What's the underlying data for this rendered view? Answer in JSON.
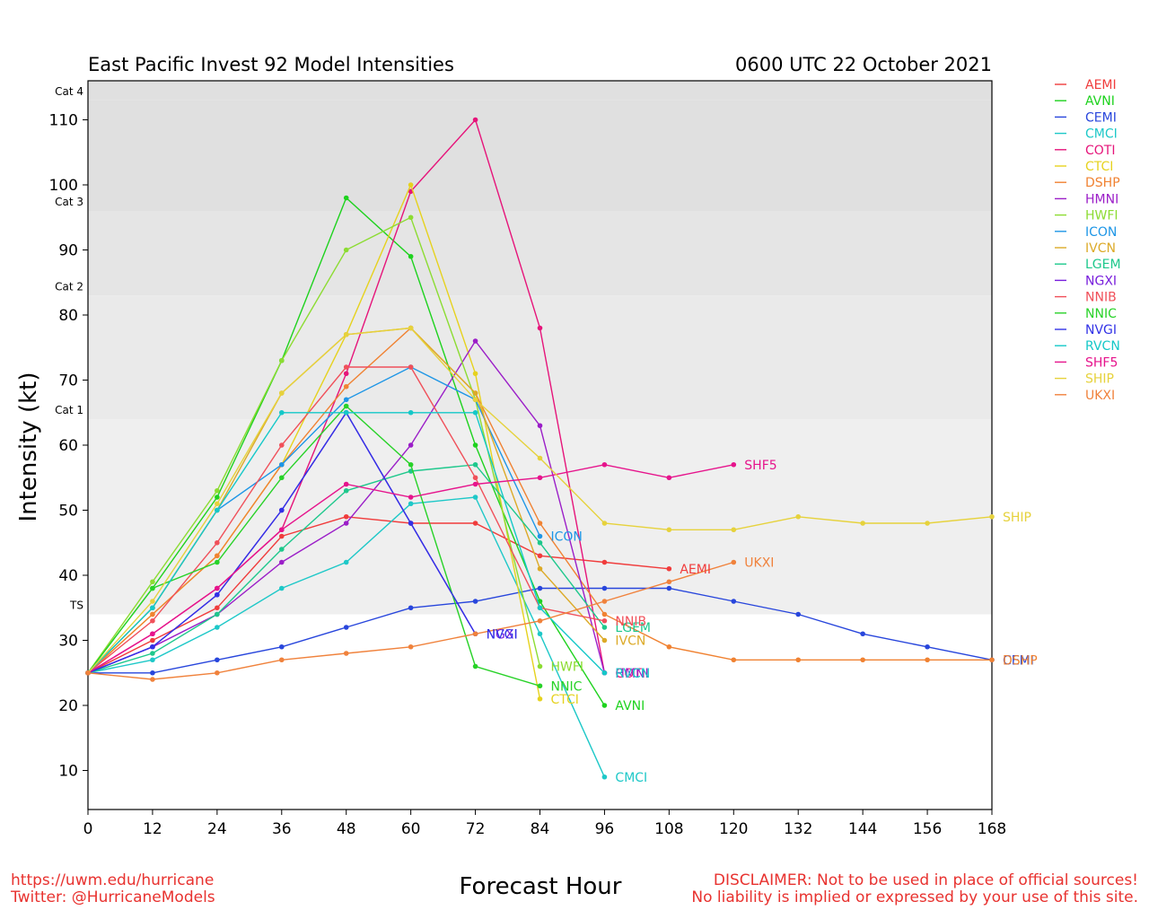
{
  "chart_data": {
    "type": "line",
    "title": "East Pacific Invest 92 Model Intensities",
    "subtitle": "0600 UTC 22 October 2021",
    "xlabel": "Forecast Hour",
    "ylabel": "Intensity (kt)",
    "xlim": [
      0,
      168
    ],
    "ylim": [
      4,
      116
    ],
    "xticks": [
      0,
      12,
      24,
      36,
      48,
      60,
      72,
      84,
      96,
      108,
      120,
      132,
      144,
      156,
      168
    ],
    "yticks": [
      10,
      20,
      30,
      40,
      50,
      60,
      70,
      80,
      90,
      100,
      110
    ],
    "grid": false,
    "legend_position": "right",
    "categories": [
      {
        "label": "TS",
        "min": 34,
        "max": 64,
        "color": "#efefef"
      },
      {
        "label": "Cat 1",
        "min": 64,
        "max": 83,
        "color": "#eaeaea"
      },
      {
        "label": "Cat 2",
        "min": 83,
        "max": 96,
        "color": "#e5e5e5"
      },
      {
        "label": "Cat 3",
        "min": 96,
        "max": 113,
        "color": "#e0e0e0"
      },
      {
        "label": "Cat 4",
        "min": 113,
        "max": 137,
        "color": "#e0e0e0"
      }
    ],
    "series": [
      {
        "name": "AEMI",
        "color": "#f03c3c",
        "points": [
          [
            0,
            25
          ],
          [
            12,
            30
          ],
          [
            24,
            35
          ],
          [
            36,
            46
          ],
          [
            48,
            49
          ],
          [
            60,
            48
          ],
          [
            72,
            48
          ],
          [
            84,
            43
          ],
          [
            96,
            42
          ],
          [
            108,
            41
          ]
        ]
      },
      {
        "name": "AVNI",
        "color": "#1ed21e",
        "points": [
          [
            0,
            25
          ],
          [
            12,
            38
          ],
          [
            24,
            52
          ],
          [
            36,
            73
          ],
          [
            48,
            98
          ],
          [
            60,
            89
          ],
          [
            72,
            60
          ],
          [
            84,
            36
          ],
          [
            96,
            20
          ]
        ]
      },
      {
        "name": "CEMI",
        "color": "#2846dc",
        "points": [
          [
            0,
            25
          ],
          [
            12,
            25
          ],
          [
            24,
            27
          ],
          [
            36,
            29
          ],
          [
            48,
            32
          ],
          [
            60,
            35
          ],
          [
            72,
            36
          ],
          [
            84,
            38
          ],
          [
            96,
            38
          ],
          [
            108,
            38
          ],
          [
            120,
            36
          ],
          [
            132,
            34
          ],
          [
            144,
            31
          ],
          [
            156,
            29
          ],
          [
            168,
            27
          ]
        ]
      },
      {
        "name": "CMCI",
        "color": "#1ec8c8",
        "points": [
          [
            0,
            25
          ],
          [
            12,
            27
          ],
          [
            24,
            32
          ],
          [
            36,
            38
          ],
          [
            48,
            42
          ],
          [
            60,
            51
          ],
          [
            72,
            52
          ],
          [
            84,
            31
          ],
          [
            96,
            9
          ]
        ]
      },
      {
        "name": "COTI",
        "color": "#e6147a",
        "points": [
          [
            0,
            25
          ],
          [
            12,
            31
          ],
          [
            24,
            38
          ],
          [
            36,
            47
          ],
          [
            48,
            71
          ],
          [
            60,
            99
          ],
          [
            72,
            110
          ],
          [
            84,
            78
          ],
          [
            96,
            25
          ]
        ]
      },
      {
        "name": "CTCI",
        "color": "#e6d21e",
        "points": [
          [
            0,
            25
          ],
          [
            12,
            34
          ],
          [
            24,
            43
          ],
          [
            36,
            57
          ],
          [
            48,
            77
          ],
          [
            60,
            100
          ],
          [
            72,
            71
          ],
          [
            84,
            21
          ]
        ]
      },
      {
        "name": "DSHP",
        "color": "#f08232",
        "points": [
          [
            0,
            25
          ],
          [
            12,
            34
          ],
          [
            24,
            43
          ],
          [
            36,
            57
          ],
          [
            48,
            69
          ],
          [
            60,
            78
          ],
          [
            72,
            68
          ],
          [
            84,
            48
          ],
          [
            96,
            34
          ],
          [
            108,
            29
          ],
          [
            120,
            27
          ],
          [
            132,
            27
          ],
          [
            144,
            27
          ],
          [
            156,
            27
          ],
          [
            168,
            27
          ]
        ]
      },
      {
        "name": "HMNI",
        "color": "#9b1ec8",
        "points": [
          [
            0,
            25
          ],
          [
            12,
            29
          ],
          [
            24,
            34
          ],
          [
            36,
            42
          ],
          [
            48,
            48
          ],
          [
            60,
            60
          ],
          [
            72,
            76
          ],
          [
            84,
            63
          ],
          [
            96,
            25
          ]
        ]
      },
      {
        "name": "HWFI",
        "color": "#8cdc32",
        "points": [
          [
            0,
            25
          ],
          [
            12,
            39
          ],
          [
            24,
            53
          ],
          [
            36,
            73
          ],
          [
            48,
            90
          ],
          [
            60,
            95
          ],
          [
            72,
            67
          ],
          [
            84,
            26
          ]
        ]
      },
      {
        "name": "ICON",
        "color": "#1e96e6",
        "points": [
          [
            0,
            25
          ],
          [
            12,
            35
          ],
          [
            24,
            50
          ],
          [
            36,
            57
          ],
          [
            48,
            67
          ],
          [
            60,
            72
          ],
          [
            72,
            67
          ],
          [
            84,
            46
          ]
        ]
      },
      {
        "name": "IVCN",
        "color": "#dcaa28",
        "points": [
          [
            0,
            25
          ],
          [
            12,
            35
          ],
          [
            24,
            50
          ],
          [
            36,
            68
          ],
          [
            48,
            77
          ],
          [
            60,
            78
          ],
          [
            72,
            68
          ],
          [
            84,
            41
          ],
          [
            96,
            30
          ]
        ]
      },
      {
        "name": "LGEM",
        "color": "#1ec88c",
        "points": [
          [
            0,
            25
          ],
          [
            12,
            28
          ],
          [
            24,
            34
          ],
          [
            36,
            44
          ],
          [
            48,
            53
          ],
          [
            60,
            56
          ],
          [
            72,
            57
          ],
          [
            84,
            45
          ],
          [
            96,
            32
          ]
        ]
      },
      {
        "name": "NGXI",
        "color": "#781edc",
        "points": [
          [
            0,
            25
          ],
          [
            12,
            29
          ],
          [
            24,
            37
          ],
          [
            36,
            50
          ],
          [
            48,
            65
          ],
          [
            60,
            48
          ],
          [
            72,
            31
          ]
        ]
      },
      {
        "name": "NNIB",
        "color": "#f0505a",
        "points": [
          [
            0,
            25
          ],
          [
            12,
            33
          ],
          [
            24,
            45
          ],
          [
            36,
            60
          ],
          [
            48,
            72
          ],
          [
            60,
            72
          ],
          [
            72,
            55
          ],
          [
            84,
            35
          ],
          [
            96,
            33
          ]
        ]
      },
      {
        "name": "NNIC",
        "color": "#28d228",
        "points": [
          [
            0,
            25
          ],
          [
            12,
            38
          ],
          [
            24,
            42
          ],
          [
            36,
            55
          ],
          [
            48,
            66
          ],
          [
            60,
            57
          ],
          [
            72,
            26
          ],
          [
            84,
            23
          ]
        ]
      },
      {
        "name": "NVGI",
        "color": "#3232e6",
        "points": [
          [
            0,
            25
          ],
          [
            12,
            29
          ],
          [
            24,
            37
          ],
          [
            36,
            50
          ],
          [
            48,
            65
          ],
          [
            60,
            48
          ],
          [
            72,
            31
          ]
        ]
      },
      {
        "name": "RVCN",
        "color": "#14c8c8",
        "points": [
          [
            0,
            25
          ],
          [
            12,
            35
          ],
          [
            24,
            50
          ],
          [
            36,
            65
          ],
          [
            48,
            65
          ],
          [
            60,
            65
          ],
          [
            72,
            65
          ],
          [
            84,
            35
          ],
          [
            96,
            25
          ]
        ]
      },
      {
        "name": "SHF5",
        "color": "#e6148c",
        "points": [
          [
            0,
            25
          ],
          [
            12,
            31
          ],
          [
            24,
            38
          ],
          [
            36,
            47
          ],
          [
            48,
            54
          ],
          [
            60,
            52
          ],
          [
            72,
            54
          ],
          [
            84,
            55
          ],
          [
            96,
            57
          ],
          [
            108,
            55
          ],
          [
            120,
            57
          ]
        ]
      },
      {
        "name": "SHIP",
        "color": "#e6d23c",
        "points": [
          [
            0,
            25
          ],
          [
            12,
            36
          ],
          [
            24,
            51
          ],
          [
            36,
            68
          ],
          [
            48,
            77
          ],
          [
            60,
            78
          ],
          [
            72,
            67
          ],
          [
            84,
            58
          ],
          [
            96,
            48
          ],
          [
            108,
            47
          ],
          [
            120,
            47
          ],
          [
            132,
            49
          ],
          [
            144,
            48
          ],
          [
            156,
            48
          ],
          [
            168,
            49
          ]
        ]
      },
      {
        "name": "UKXI",
        "color": "#f0823c",
        "points": [
          [
            0,
            25
          ],
          [
            12,
            24
          ],
          [
            24,
            25
          ],
          [
            36,
            27
          ],
          [
            48,
            28
          ],
          [
            60,
            29
          ],
          [
            72,
            31
          ],
          [
            84,
            33
          ],
          [
            96,
            36
          ],
          [
            108,
            39
          ],
          [
            120,
            42
          ]
        ]
      }
    ]
  },
  "footer": {
    "left_line1": "https://uwm.edu/hurricane",
    "left_line2": "Twitter: @HurricaneModels",
    "right_line1": "DISCLAIMER: Not to be used in place of official sources!",
    "right_line2": "No liability is implied or expressed by your use of this site."
  }
}
